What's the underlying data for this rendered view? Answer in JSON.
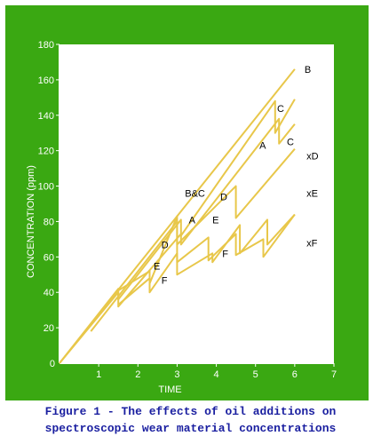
{
  "colors": {
    "background": "#3aa812",
    "plot_bg": "#ffffff",
    "axis": "#ffffff",
    "line": "#e8c74a",
    "caption": "#1a1fa0"
  },
  "caption": {
    "line1": "Figure 1 - The effects of oil additions on",
    "line2": "spectroscopic wear material concentrations"
  },
  "chart_data": {
    "type": "line",
    "xlabel": "TIME",
    "ylabel": "CONCENTRATION (ppm)",
    "xlim": [
      0,
      7
    ],
    "ylim": [
      0,
      180
    ],
    "xticks": [
      1,
      2,
      3,
      4,
      5,
      6,
      7
    ],
    "yticks": [
      20,
      40,
      60,
      80,
      100,
      120,
      140,
      160,
      180
    ],
    "grid": false,
    "series": [
      {
        "name": "B",
        "points": [
          [
            0,
            0
          ],
          [
            6.0,
            166
          ]
        ]
      },
      {
        "name": "C",
        "points": [
          [
            0,
            0
          ],
          [
            1.5,
            40
          ],
          [
            1.5,
            32
          ],
          [
            3.1,
            73
          ],
          [
            3.1,
            67
          ],
          [
            5.6,
            138
          ],
          [
            5.6,
            124
          ],
          [
            6.0,
            135
          ]
        ]
      },
      {
        "name": "A",
        "points": [
          [
            0,
            0
          ],
          [
            1.5,
            42
          ],
          [
            1.5,
            36
          ],
          [
            3.1,
            81
          ],
          [
            3.1,
            72
          ],
          [
            5.5,
            148
          ],
          [
            5.5,
            130
          ],
          [
            6.0,
            149
          ]
        ]
      },
      {
        "name": "D",
        "points": [
          [
            0.8,
            18
          ],
          [
            3.0,
            80
          ],
          [
            3.0,
            67
          ],
          [
            4.5,
            100
          ],
          [
            4.5,
            82
          ],
          [
            6.0,
            121
          ]
        ]
      },
      {
        "name": "E",
        "points": [
          [
            1.5,
            41
          ],
          [
            2.3,
            52
          ],
          [
            2.3,
            45
          ],
          [
            3.0,
            83
          ],
          [
            3.0,
            57
          ],
          [
            3.8,
            71
          ],
          [
            3.8,
            58
          ],
          [
            4.5,
            73
          ],
          [
            4.5,
            61
          ],
          [
            5.2,
            70
          ],
          [
            5.2,
            60
          ],
          [
            6.0,
            84
          ]
        ]
      },
      {
        "name": "F",
        "points": [
          [
            1.5,
            33
          ],
          [
            2.3,
            48
          ],
          [
            2.3,
            40
          ],
          [
            3.0,
            62
          ],
          [
            3.0,
            50
          ],
          [
            3.9,
            62
          ],
          [
            3.9,
            57
          ],
          [
            4.6,
            78
          ],
          [
            4.6,
            62
          ],
          [
            5.3,
            81
          ],
          [
            5.3,
            67
          ],
          [
            6.0,
            84
          ]
        ]
      }
    ],
    "annotations": [
      {
        "text": "B",
        "x": 6.25,
        "y": 166
      },
      {
        "text": "C",
        "x": 5.55,
        "y": 144
      },
      {
        "text": "C",
        "x": 5.8,
        "y": 125
      },
      {
        "text": "A",
        "x": 5.1,
        "y": 123
      },
      {
        "text": "xD",
        "x": 6.3,
        "y": 117
      },
      {
        "text": "xE",
        "x": 6.3,
        "y": 96
      },
      {
        "text": "xF",
        "x": 6.3,
        "y": 68
      },
      {
        "text": "B&C",
        "x": 3.2,
        "y": 96
      },
      {
        "text": "D",
        "x": 4.1,
        "y": 94
      },
      {
        "text": "A",
        "x": 3.3,
        "y": 81
      },
      {
        "text": "E",
        "x": 3.9,
        "y": 81
      },
      {
        "text": "D",
        "x": 2.6,
        "y": 67
      },
      {
        "text": "F",
        "x": 4.15,
        "y": 62
      },
      {
        "text": "E",
        "x": 2.4,
        "y": 55
      },
      {
        "text": "F",
        "x": 2.6,
        "y": 47
      }
    ]
  }
}
